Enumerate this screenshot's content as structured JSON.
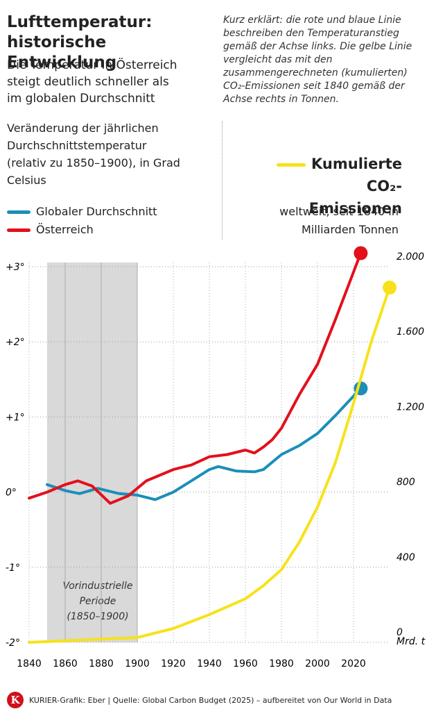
{
  "chart_data": {
    "type": "line",
    "title": "Lufttemperatur: historische Entwicklung",
    "subtitle": "Die Temperatur in Österreich steigt deutlich schneller als im globalen Durchschnitt",
    "y_label": "Veränderung der jährlichen Durchschnittstemperatur (relativ zu 1850–1900), in Grad Celsius",
    "note": "Kurz erklärt: die rote und blaue Linie beschreiben den Temperaturanstieg gemäß der Achse links. Die gelbe Linie vergleicht das mit den zusammengerechneten (kumulierten) CO₂-Emissionen seit 1840 gemäß der Achse rechts in Tonnen.",
    "y2_label": "weltweit, seit 1840 in Milliarden Tonnen",
    "y2_unit": "Mrd. t",
    "annotation": "Vorindustrielle Periode (1850–1900)",
    "shaded_range": [
      1850,
      1900
    ],
    "source": "KURIER-Grafik: Eber | Quelle: Global Carbon Budget (2025) – aufbereitet von Our World in Data",
    "logo": "K",
    "xlim": [
      1840,
      2040
    ],
    "xticks": [
      1840,
      1860,
      1880,
      1900,
      1920,
      1940,
      1960,
      1980,
      2000,
      2020
    ],
    "ylim": [
      -2,
      3
    ],
    "yticks": [
      {
        "value": -2,
        "label": "-2°"
      },
      {
        "value": -1,
        "label": "-1°"
      },
      {
        "value": 0,
        "label": "0°"
      },
      {
        "value": 1,
        "label": "+1°"
      },
      {
        "value": 2,
        "label": "+2°"
      },
      {
        "value": 3,
        "label": "+3°"
      }
    ],
    "y2lim": [
      0,
      2000
    ],
    "y2ticks": [
      0,
      400,
      800,
      {
        "value": 1200,
        "label": "1.200"
      },
      {
        "value": 1600,
        "label": "1.600"
      },
      {
        "value": 2000,
        "label": "2.000"
      }
    ],
    "grid": true,
    "series": [
      {
        "name": "Globaler Durchschnitt",
        "color": "#1a8fb8",
        "x": [
          1850,
          1860,
          1868,
          1878,
          1890,
          1900,
          1910,
          1920,
          1930,
          1940,
          1945,
          1955,
          1965,
          1970,
          1980,
          1990,
          2000,
          2010,
          2024
        ],
        "values": [
          0.1,
          0.02,
          -0.02,
          0.05,
          -0.02,
          -0.04,
          -0.1,
          0.0,
          0.15,
          0.3,
          0.34,
          0.28,
          0.27,
          0.3,
          0.5,
          0.62,
          0.78,
          1.02,
          1.38
        ]
      },
      {
        "name": "Österreich",
        "color": "#e3101c",
        "x": [
          1840,
          1850,
          1860,
          1867,
          1875,
          1885,
          1895,
          1900,
          1905,
          1910,
          1920,
          1930,
          1940,
          1950,
          1960,
          1965,
          1970,
          1975,
          1980,
          1990,
          2000,
          2010,
          2024
        ],
        "values": [
          -0.08,
          0.0,
          0.1,
          0.15,
          0.08,
          -0.15,
          -0.05,
          0.05,
          0.15,
          0.2,
          0.3,
          0.36,
          0.47,
          0.5,
          0.56,
          0.52,
          0.6,
          0.7,
          0.85,
          1.3,
          1.7,
          2.3,
          3.18
        ]
      },
      {
        "name": "Kumulierte CO₂-Emissionen",
        "color": "#f7e21a",
        "axis": "y2",
        "x": [
          1840,
          1900,
          1920,
          1940,
          1960,
          1970,
          1980,
          1990,
          2000,
          2010,
          2020,
          2030,
          2040
        ],
        "values": [
          0,
          26,
          74,
          148,
          232,
          302,
          387,
          535,
          720,
          959,
          1273,
          1605,
          1889
        ]
      }
    ]
  }
}
